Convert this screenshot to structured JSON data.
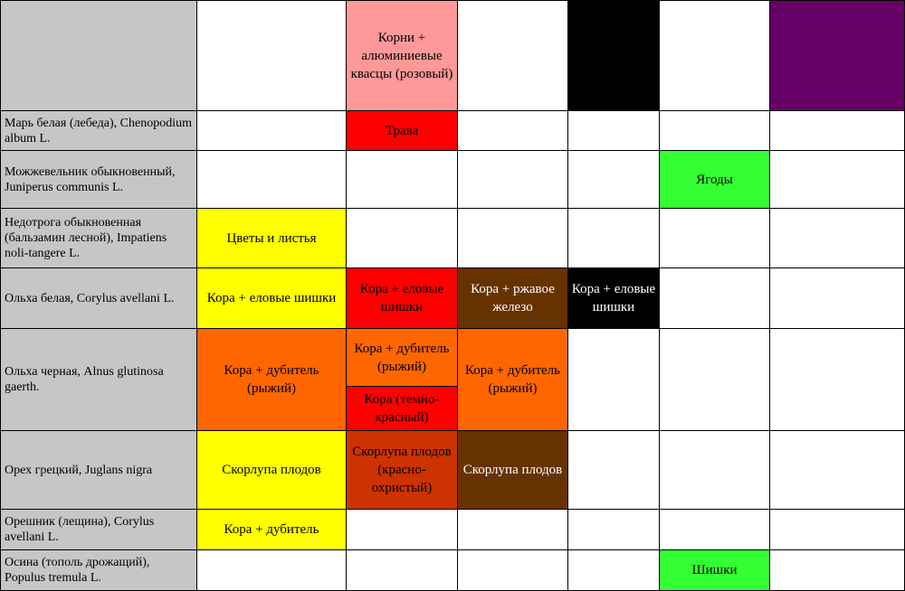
{
  "table": {
    "header": [
      "",
      "",
      "Корни + алюминиевые квасцы (розовый)",
      "",
      "",
      "",
      ""
    ],
    "header_colors": [
      "",
      "#ffffff",
      "#ff9999",
      "#ffffff",
      "#000000",
      "#ffffff",
      "#660066"
    ],
    "rows": [
      {
        "plant": "Марь белая (лебеда), Chenopodium album L.",
        "cells": [
          "",
          "Трава",
          "",
          "",
          "",
          ""
        ]
      },
      {
        "plant": "Можжевельник обыкновенный, Juniperus communis L.",
        "cells": [
          "",
          "",
          "",
          "",
          "Ягоды",
          ""
        ]
      },
      {
        "plant": "Недотрога обыкновенная (бальзамин лесной), Impatiens noli-tangere L.",
        "cells": [
          "Цветы и листья",
          "",
          "",
          "",
          "",
          ""
        ]
      },
      {
        "plant": "Ольха белая, Corylus avellani L.",
        "cells": [
          "Кора + еловые шишки",
          "Кора + еловые шишки",
          "Кора + ржавое железо",
          "Кора + еловые шишки",
          "",
          ""
        ]
      },
      {
        "plant": "Ольха черная, Alnus glutinosa gaerth.",
        "cells": [
          "Кора + дубитель (рыжий)",
          "Кора + дубитель (рыжий)",
          "Кора + дубитель (рыжий)",
          "",
          "",
          ""
        ],
        "extra": "Кора (темно-красный)"
      },
      {
        "plant": "Орех грецкий, Juglans nigra",
        "cells": [
          "Скорлупа плодов",
          "Скорлупа плодов (красно-охристый)",
          "Скорлупа плодов",
          "",
          "",
          ""
        ]
      },
      {
        "plant": "Орешник (лещина), Corylus avellani L.",
        "cells": [
          "Кора + дубитель",
          "",
          "",
          "",
          "",
          ""
        ]
      },
      {
        "plant": "Осина (тополь дрожащий), Populus tremula L.",
        "cells": [
          "",
          "",
          "",
          "",
          "Шишки",
          ""
        ]
      }
    ]
  },
  "colors": {
    "yellow": "#ffff00",
    "red": "#ff0000",
    "orange": "#ff6600",
    "brown": "#663300",
    "rust": "#cc3300",
    "black": "#000000",
    "green": "#33ff33",
    "pink": "#ff9999",
    "purple": "#660066",
    "white": "#ffffff"
  }
}
